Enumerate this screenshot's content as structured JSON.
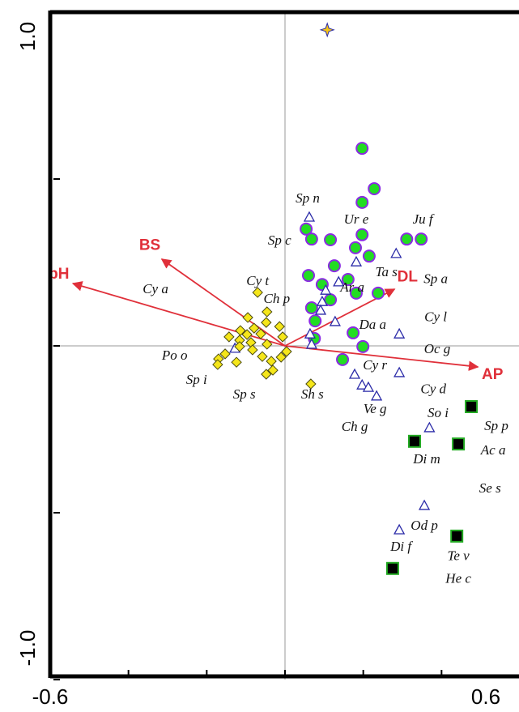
{
  "chart_data": {
    "type": "biplot",
    "xlim": [
      -0.6,
      0.6
    ],
    "ylim": [
      -1,
      1
    ],
    "xticks": [
      {
        "value": -0.6,
        "label": "-0.6"
      },
      {
        "value": -0.4,
        "label": null
      },
      {
        "value": -0.2,
        "label": null
      },
      {
        "value": 0,
        "label": null
      },
      {
        "value": 0.2,
        "label": null
      },
      {
        "value": 0.4,
        "label": null
      },
      {
        "value": 0.6,
        "label": "0.6"
      }
    ],
    "yticks": [
      {
        "value": -1,
        "label": "-1.0"
      },
      {
        "value": -0.5,
        "label": null
      },
      {
        "value": 0,
        "label": null
      },
      {
        "value": 0.5,
        "label": null
      },
      {
        "value": 1,
        "label": "1.0"
      }
    ],
    "zero_lines": true,
    "series": [
      {
        "marker": "circle",
        "color": "#22dd22",
        "edge": "#8a2be2",
        "x": [
          0.197,
          0.228,
          0.197,
          0.054,
          0.068,
          0.116,
          0.197,
          0.311,
          0.348,
          0.215,
          0.18,
          0.126,
          0.06,
          0.095,
          0.161,
          0.116,
          0.182,
          0.238,
          0.068,
          0.077,
          0.174,
          0.075,
          0.199,
          0.147
        ],
        "values": [
          0.592,
          0.471,
          0.43,
          0.35,
          0.32,
          0.318,
          0.333,
          0.32,
          0.32,
          0.269,
          0.294,
          0.24,
          0.211,
          0.184,
          0.199,
          0.138,
          0.158,
          0.158,
          0.114,
          0.075,
          0.039,
          0.022,
          -0.002,
          -0.041
        ]
      },
      {
        "marker": "triangle",
        "color": "#ffffff",
        "edge": "#2a2aa8",
        "x": [
          0.062,
          0.284,
          0.182,
          0.137,
          0.104,
          0.095,
          0.091,
          0.128,
          0.064,
          0.068,
          0.292,
          0.178,
          0.197,
          0.213,
          0.234,
          0.292,
          0.369,
          0.356,
          0.292,
          -0.128
        ],
        "values": [
          0.386,
          0.277,
          0.252,
          0.192,
          0.167,
          0.133,
          0.107,
          0.073,
          0.036,
          0.005,
          0.036,
          -0.085,
          -0.117,
          -0.124,
          -0.15,
          -0.08,
          -0.245,
          -0.478,
          -0.551,
          -0.007
        ]
      },
      {
        "marker": "diamond",
        "color": "#f5e61a",
        "edge": "#4a4a10",
        "x": [
          -0.07,
          -0.046,
          -0.095,
          -0.048,
          -0.014,
          -0.079,
          -0.114,
          -0.062,
          -0.006,
          -0.097,
          -0.116,
          -0.143,
          -0.087,
          -0.046,
          -0.116,
          -0.153,
          -0.17,
          -0.172,
          -0.124,
          -0.083,
          -0.058,
          -0.035,
          -0.031,
          -0.048,
          0.004,
          -0.01,
          0.066
        ],
        "values": [
          0.16,
          0.102,
          0.085,
          0.07,
          0.058,
          0.053,
          0.046,
          0.036,
          0.027,
          0.034,
          0.017,
          0.027,
          0.01,
          0.005,
          -0.002,
          -0.024,
          -0.039,
          -0.056,
          -0.049,
          -0.012,
          -0.032,
          -0.046,
          -0.073,
          -0.085,
          -0.017,
          -0.034,
          -0.114
        ]
      },
      {
        "marker": "square",
        "color": "#000000",
        "edge": "#22aa22",
        "x": [
          0.476,
          0.331,
          0.443,
          0.439,
          0.275
        ],
        "values": [
          -0.182,
          -0.286,
          -0.294,
          -0.57,
          -0.667
        ]
      },
      {
        "marker": "star",
        "color": "#f5c518",
        "edge": "#2a2aa8",
        "x": [
          0.108
        ],
        "values": [
          0.947
        ]
      }
    ],
    "vector_color": "#e0303a",
    "vectors": [
      {
        "label": "pH",
        "x": -0.542,
        "y": 0.187
      },
      {
        "label": "BS",
        "x": -0.315,
        "y": 0.26
      },
      {
        "label": "DL",
        "x": 0.28,
        "y": 0.17
      },
      {
        "label": "AP",
        "x": 0.493,
        "y": -0.063
      }
    ],
    "species": [
      {
        "label": "Sp n",
        "x": 0.058,
        "y": 0.439
      },
      {
        "label": "Ur e",
        "x": 0.182,
        "y": 0.376
      },
      {
        "label": "Ju f",
        "x": 0.352,
        "y": 0.376
      },
      {
        "label": "Sp c",
        "x": -0.014,
        "y": 0.313
      },
      {
        "label": "Ta s",
        "x": 0.259,
        "y": 0.218
      },
      {
        "label": "Sp a",
        "x": 0.385,
        "y": 0.197
      },
      {
        "label": "Cy t",
        "x": -0.07,
        "y": 0.192
      },
      {
        "label": "Ch p",
        "x": -0.021,
        "y": 0.138
      },
      {
        "label": "Ar a",
        "x": 0.172,
        "y": 0.172
      },
      {
        "label": "Cy a",
        "x": -0.331,
        "y": 0.167
      },
      {
        "label": "Da a",
        "x": 0.224,
        "y": 0.061
      },
      {
        "label": "Cy l",
        "x": 0.385,
        "y": 0.083
      },
      {
        "label": "Oc g",
        "x": 0.389,
        "y": -0.012
      },
      {
        "label": "Po o",
        "x": -0.282,
        "y": -0.032
      },
      {
        "label": "Cy r",
        "x": 0.23,
        "y": -0.061
      },
      {
        "label": "Sp i",
        "x": -0.226,
        "y": -0.104
      },
      {
        "label": "Sp s",
        "x": -0.104,
        "y": -0.148
      },
      {
        "label": "Sh s",
        "x": 0.07,
        "y": -0.148
      },
      {
        "label": "Cy d",
        "x": 0.379,
        "y": -0.133
      },
      {
        "label": "Ve g",
        "x": 0.23,
        "y": -0.192
      },
      {
        "label": "So i",
        "x": 0.391,
        "y": -0.204
      },
      {
        "label": "Ch g",
        "x": 0.178,
        "y": -0.245
      },
      {
        "label": "Sp p",
        "x": 0.54,
        "y": -0.243
      },
      {
        "label": "Di m",
        "x": 0.362,
        "y": -0.342
      },
      {
        "label": "Ac a",
        "x": 0.532,
        "y": -0.316
      },
      {
        "label": "Se s",
        "x": 0.524,
        "y": -0.43
      },
      {
        "label": "Od p",
        "x": 0.356,
        "y": -0.541
      },
      {
        "label": "Di f",
        "x": 0.296,
        "y": -0.604
      },
      {
        "label": "Te v",
        "x": 0.443,
        "y": -0.633
      },
      {
        "label": "He c",
        "x": 0.443,
        "y": -0.701
      }
    ]
  }
}
